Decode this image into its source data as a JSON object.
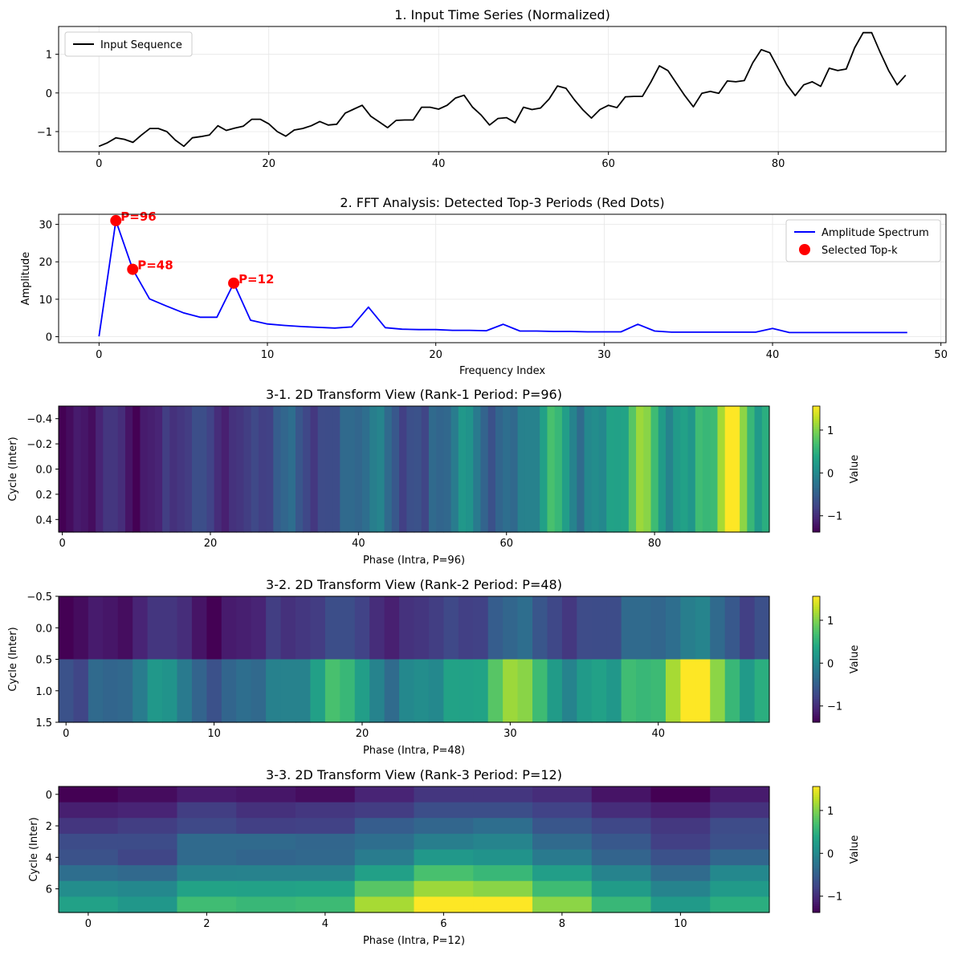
{
  "figure": {
    "background": "#ffffff"
  },
  "chart_data": [
    {
      "type": "line",
      "title": "1. Input Time Series (Normalized)",
      "xlabel": "",
      "ylabel": "",
      "xlim": [
        -4.75,
        99.75
      ],
      "ylim": [
        -1.52,
        1.72
      ],
      "xticks": [
        0,
        20,
        40,
        60,
        80
      ],
      "yticks": [
        -1,
        0,
        1
      ],
      "grid": true,
      "legend": {
        "position": "upper-left",
        "entries": [
          "Input Sequence"
        ]
      },
      "series": [
        {
          "name": "Input Sequence",
          "color": "#000000",
          "x": [
            0,
            1,
            2,
            3,
            4,
            5,
            6,
            7,
            8,
            9,
            10,
            11,
            12,
            13,
            14,
            15,
            16,
            17,
            18,
            19,
            20,
            21,
            22,
            23,
            24,
            25,
            26,
            27,
            28,
            29,
            30,
            31,
            32,
            33,
            34,
            35,
            36,
            37,
            38,
            39,
            40,
            41,
            42,
            43,
            44,
            45,
            46,
            47,
            48,
            49,
            50,
            51,
            52,
            53,
            54,
            55,
            56,
            57,
            58,
            59,
            60,
            61,
            62,
            63,
            64,
            65,
            66,
            67,
            68,
            69,
            70,
            71,
            72,
            73,
            74,
            75,
            76,
            77,
            78,
            79,
            80,
            81,
            82,
            83,
            84,
            85,
            86,
            87,
            88,
            89,
            90,
            91,
            92,
            93,
            94,
            95
          ],
          "values": [
            -1.38,
            -1.29,
            -1.16,
            -1.2,
            -1.28,
            -1.09,
            -0.92,
            -0.92,
            -1.0,
            -1.22,
            -1.38,
            -1.16,
            -1.13,
            -1.09,
            -0.85,
            -0.97,
            -0.91,
            -0.86,
            -0.68,
            -0.68,
            -0.8,
            -1.0,
            -1.12,
            -0.96,
            -0.92,
            -0.85,
            -0.74,
            -0.83,
            -0.81,
            -0.52,
            -0.42,
            -0.32,
            -0.6,
            -0.75,
            -0.9,
            -0.71,
            -0.7,
            -0.7,
            -0.37,
            -0.37,
            -0.42,
            -0.32,
            -0.13,
            -0.06,
            -0.37,
            -0.57,
            -0.83,
            -0.66,
            -0.64,
            -0.77,
            -0.37,
            -0.43,
            -0.39,
            -0.16,
            0.18,
            0.12,
            -0.18,
            -0.44,
            -0.65,
            -0.43,
            -0.32,
            -0.38,
            -0.1,
            -0.09,
            -0.09,
            0.28,
            0.7,
            0.58,
            0.25,
            -0.07,
            -0.36,
            -0.01,
            0.04,
            -0.01,
            0.31,
            0.29,
            0.32,
            0.78,
            1.12,
            1.04,
            0.63,
            0.22,
            -0.07,
            0.21,
            0.29,
            0.17,
            0.64,
            0.58,
            0.62,
            1.17,
            1.56,
            1.56,
            1.05,
            0.58,
            0.21,
            0.46
          ]
        }
      ]
    },
    {
      "type": "line",
      "title": "2. FFT Analysis: Detected Top-3 Periods (Red Dots)",
      "xlabel": "Frequency Index",
      "ylabel": "Amplitude",
      "xlim": [
        -2.4,
        50.3
      ],
      "ylim": [
        -1.6,
        32.7
      ],
      "xticks": [
        0,
        10,
        20,
        30,
        40,
        50
      ],
      "yticks": [
        0,
        10,
        20,
        30
      ],
      "grid": true,
      "legend": {
        "position": "upper-right",
        "entries": [
          "Amplitude Spectrum",
          "Selected Top-k"
        ]
      },
      "series": [
        {
          "name": "Amplitude Spectrum",
          "color": "#0000ff",
          "x": [
            0,
            1,
            2,
            3,
            4,
            5,
            6,
            7,
            8,
            9,
            10,
            11,
            12,
            13,
            14,
            15,
            16,
            17,
            18,
            19,
            20,
            21,
            22,
            23,
            24,
            25,
            26,
            27,
            28,
            29,
            30,
            31,
            32,
            33,
            34,
            35,
            36,
            37,
            38,
            39,
            40,
            41,
            42,
            43,
            44,
            45,
            46,
            47,
            48
          ],
          "values": [
            0.1,
            31.0,
            18.0,
            10.1,
            8.2,
            6.4,
            5.2,
            5.2,
            14.3,
            4.4,
            3.4,
            3.0,
            2.7,
            2.5,
            2.3,
            2.6,
            7.9,
            2.4,
            2.0,
            1.9,
            1.9,
            1.7,
            1.7,
            1.6,
            3.3,
            1.5,
            1.5,
            1.4,
            1.4,
            1.3,
            1.3,
            1.3,
            3.3,
            1.5,
            1.2,
            1.2,
            1.2,
            1.2,
            1.2,
            1.2,
            2.2,
            1.1,
            1.1,
            1.1,
            1.1,
            1.1,
            1.1,
            1.1,
            1.1
          ]
        }
      ],
      "points": {
        "name": "Selected Top-k",
        "color": "#ff0000",
        "x": [
          1,
          2,
          8
        ],
        "values": [
          31.0,
          18.0,
          14.3
        ],
        "labels": [
          "P=96",
          "P=48",
          "P=12"
        ]
      }
    },
    {
      "type": "heatmap",
      "title": "3-1. 2D Transform View (Rank-1 Period: P=96)",
      "xlabel": "Phase (Intra, P=96)",
      "ylabel": "Cycle (Inter)",
      "xlim": [
        -0.5,
        95.5
      ],
      "ylim": [
        -0.5,
        0.5
      ],
      "xticks": [
        0,
        20,
        40,
        60,
        80
      ],
      "yticks": [
        -0.4,
        -0.2,
        0.0,
        0.2,
        0.4
      ],
      "ytick_labels": [
        "−0.4",
        "−0.2",
        "0.0",
        "0.2",
        "0.4"
      ],
      "rows": 1,
      "cols": 96,
      "colorbar": {
        "label": "Value",
        "ticks": [
          1,
          0,
          -1
        ],
        "tick_labels": [
          "1",
          "0",
          "−1"
        ],
        "min": -1.38,
        "max": 1.56
      }
    },
    {
      "type": "heatmap",
      "title": "3-2. 2D Transform View (Rank-2 Period: P=48)",
      "xlabel": "Phase (Intra, P=48)",
      "ylabel": "Cycle (Inter)",
      "xlim": [
        -0.5,
        47.5
      ],
      "ylim": [
        -0.5,
        1.5
      ],
      "xticks": [
        0,
        10,
        20,
        30,
        40
      ],
      "yticks": [
        -0.5,
        0.0,
        0.5,
        1.0,
        1.5
      ],
      "ytick_labels": [
        "−0.5",
        "0.0",
        "0.5",
        "1.0",
        "1.5"
      ],
      "rows": 2,
      "cols": 48,
      "colorbar": {
        "label": "Value",
        "ticks": [
          1,
          0,
          -1
        ],
        "tick_labels": [
          "1",
          "0",
          "−1"
        ],
        "min": -1.38,
        "max": 1.56
      }
    },
    {
      "type": "heatmap",
      "title": "3-3. 2D Transform View (Rank-3 Period: P=12)",
      "xlabel": "Phase (Intra, P=12)",
      "ylabel": "Cycle (Inter)",
      "xlim": [
        -0.5,
        11.5
      ],
      "ylim": [
        -0.5,
        7.5
      ],
      "xticks": [
        0,
        2,
        4,
        6,
        8,
        10
      ],
      "yticks": [
        0,
        2,
        4,
        6
      ],
      "ytick_labels": [
        "0",
        "2",
        "4",
        "6"
      ],
      "rows": 8,
      "cols": 12,
      "colorbar": {
        "label": "Value",
        "ticks": [
          1,
          0,
          -1
        ],
        "tick_labels": [
          "1",
          "0",
          "−1"
        ],
        "min": -1.38,
        "max": 1.56
      }
    }
  ]
}
